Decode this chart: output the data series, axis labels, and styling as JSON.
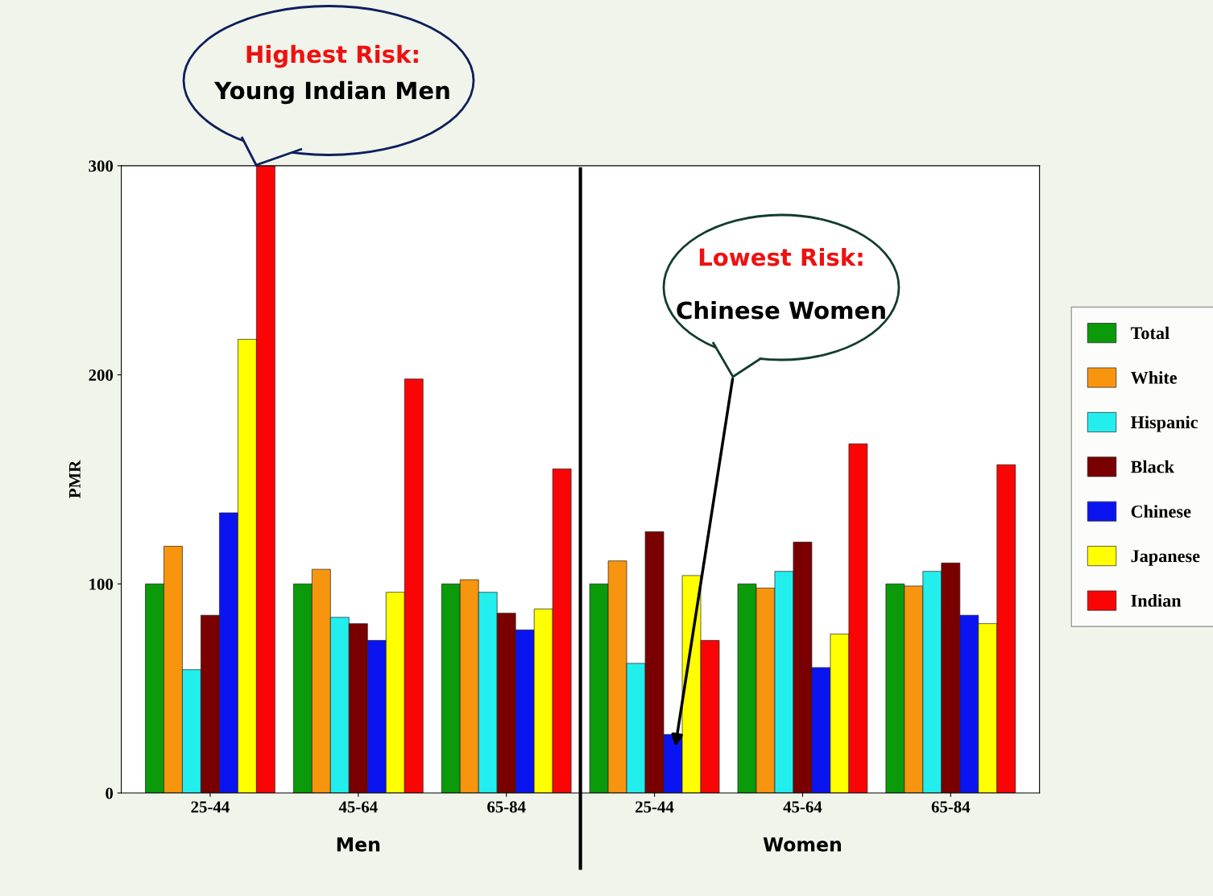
{
  "chart_data": {
    "type": "bar",
    "ylabel": "PMR",
    "categories": [
      "25-44",
      "45-64",
      "65-84",
      "25-44",
      "45-64",
      "65-84"
    ],
    "series": [
      {
        "name": "Total",
        "color": "#0a9a0a",
        "values": [
          100,
          100,
          100,
          100,
          100,
          100
        ]
      },
      {
        "name": "White",
        "color": "#f7950f",
        "values": [
          118,
          107,
          102,
          111,
          98,
          99
        ]
      },
      {
        "name": "Hispanic",
        "color": "#22eeee",
        "values": [
          59,
          84,
          96,
          62,
          106,
          106
        ]
      },
      {
        "name": "Black",
        "color": "#7a0000",
        "values": [
          85,
          81,
          86,
          125,
          120,
          110
        ]
      },
      {
        "name": "Chinese",
        "color": "#0a14f0",
        "values": [
          134,
          73,
          78,
          28,
          60,
          85
        ]
      },
      {
        "name": "Japanese",
        "color": "#ffff00",
        "values": [
          217,
          96,
          88,
          104,
          76,
          81
        ]
      },
      {
        "name": "Indian",
        "color": "#fa0505",
        "values": [
          300,
          198,
          155,
          73,
          167,
          157
        ]
      }
    ],
    "ylim": [
      0,
      300
    ],
    "yticks": [
      0,
      100,
      200,
      300
    ],
    "annotations": [
      "Highest Risk:",
      "Young Indian Men",
      "Lowest Risk:",
      "Chinese Women",
      "Men",
      "Women"
    ],
    "legend": "right",
    "grid": false
  }
}
